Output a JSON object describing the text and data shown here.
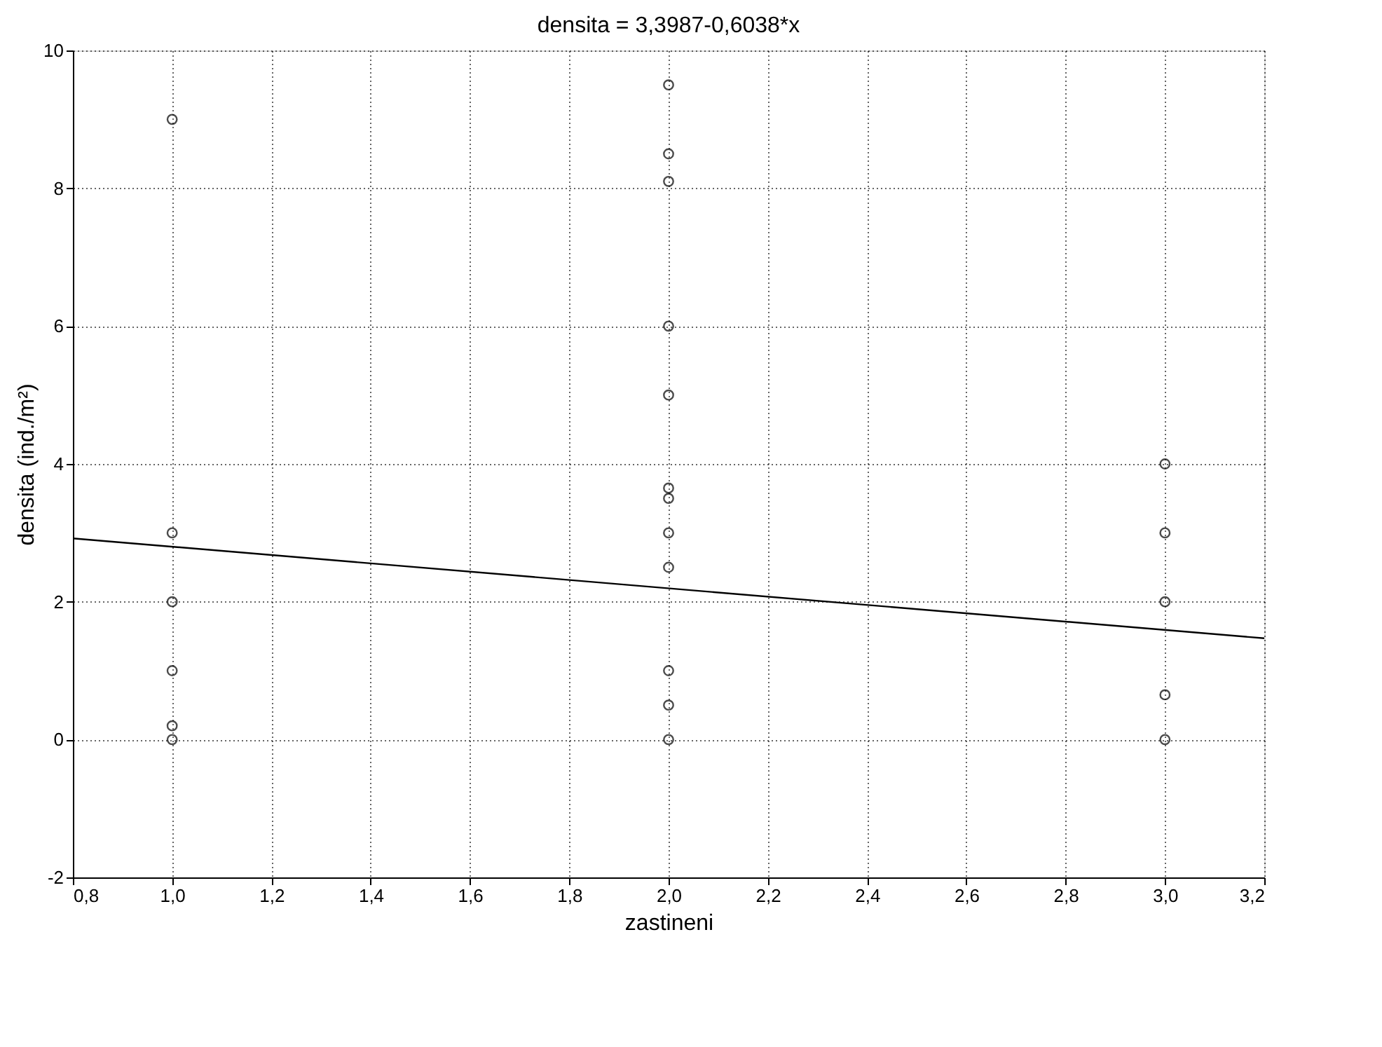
{
  "chart_data": {
    "type": "scatter",
    "title": "densita = 3,3987-0,6038*x",
    "xlabel": "zastineni",
    "ylabel": "densita (ind./m²)",
    "series": [
      {
        "type": "scatter",
        "color": "#000000",
        "marker": "circle",
        "x": [
          1,
          1,
          1,
          1,
          1,
          1,
          2,
          2,
          2,
          2,
          2,
          2,
          2,
          2,
          2,
          2,
          2,
          2,
          3,
          3,
          3,
          3,
          3
        ],
        "values": [
          9.0,
          3.0,
          2.0,
          1.0,
          0.2,
          0.0,
          9.5,
          8.5,
          8.1,
          6.0,
          5.0,
          3.65,
          3.5,
          3.0,
          2.5,
          1.0,
          0.5,
          0.0,
          4.0,
          3.0,
          2.0,
          0.65,
          0.0
        ]
      },
      {
        "type": "line",
        "color": "#000000",
        "line_style": "solid",
        "x": [
          0.8,
          3.2
        ],
        "values": [
          2.92,
          1.47
        ]
      }
    ],
    "xlim": [
      0.8,
      3.2
    ],
    "xticks": [
      {
        "value": 0.8,
        "label": "0,8"
      },
      {
        "value": 1.0,
        "label": "1,0"
      },
      {
        "value": 1.2,
        "label": "1,2"
      },
      {
        "value": 1.4,
        "label": "1,4"
      },
      {
        "value": 1.6,
        "label": "1,6"
      },
      {
        "value": 1.8,
        "label": "1,8"
      },
      {
        "value": 2.0,
        "label": "2,0"
      },
      {
        "value": 2.2,
        "label": "2,2"
      },
      {
        "value": 2.4,
        "label": "2,4"
      },
      {
        "value": 2.6,
        "label": "2,6"
      },
      {
        "value": 2.8,
        "label": "2,8"
      },
      {
        "value": 3.0,
        "label": "3,0"
      },
      {
        "value": 3.2,
        "label": "3,2"
      }
    ],
    "ylim": [
      -2,
      10
    ],
    "yticks": [
      -2,
      0,
      2,
      4,
      6,
      8,
      10
    ],
    "grid": true
  }
}
